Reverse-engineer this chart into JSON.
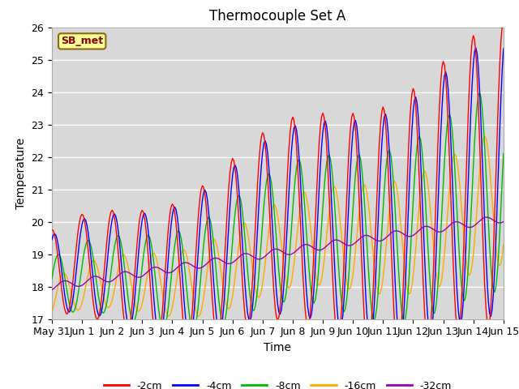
{
  "title": "Thermocouple Set A",
  "xlabel": "Time",
  "ylabel": "Temperature",
  "xlim_days": [
    0,
    15
  ],
  "ylim": [
    17.0,
    26.0
  ],
  "yticks": [
    17.0,
    18.0,
    19.0,
    20.0,
    21.0,
    22.0,
    23.0,
    24.0,
    25.0,
    26.0
  ],
  "xtick_labels": [
    "May 31",
    "Jun 1",
    "Jun 2",
    "Jun 3",
    "Jun 4",
    "Jun 5",
    "Jun 6",
    "Jun 7",
    "Jun 8",
    "Jun 9",
    "Jun 10",
    "Jun 11",
    "Jun 12",
    "Jun 13",
    "Jun 14",
    "Jun 15"
  ],
  "series_colors": [
    "#ff0000",
    "#0000ff",
    "#00bb00",
    "#ffaa00",
    "#9900bb"
  ],
  "series_labels": [
    "-2cm",
    "-4cm",
    "-8cm",
    "-16cm",
    "-32cm"
  ],
  "annotation_text": "SB_met",
  "background_color": "#d8d8d8",
  "title_fontsize": 12,
  "axis_label_fontsize": 10,
  "legend_fontsize": 9,
  "tick_fontsize": 9
}
